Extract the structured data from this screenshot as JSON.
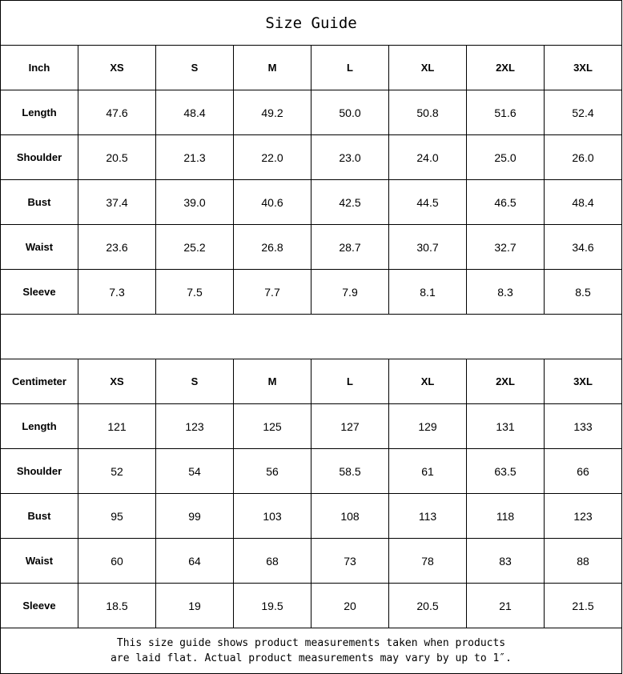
{
  "title": "Size Guide",
  "sizes": [
    "XS",
    "S",
    "M",
    "L",
    "XL",
    "2XL",
    "3XL"
  ],
  "tables": [
    {
      "unit": "Inch",
      "rows": [
        {
          "label": "Length",
          "values": [
            "47.6",
            "48.4",
            "49.2",
            "50.0",
            "50.8",
            "51.6",
            "52.4"
          ]
        },
        {
          "label": "Shoulder",
          "values": [
            "20.5",
            "21.3",
            "22.0",
            "23.0",
            "24.0",
            "25.0",
            "26.0"
          ]
        },
        {
          "label": "Bust",
          "values": [
            "37.4",
            "39.0",
            "40.6",
            "42.5",
            "44.5",
            "46.5",
            "48.4"
          ]
        },
        {
          "label": "Waist",
          "values": [
            "23.6",
            "25.2",
            "26.8",
            "28.7",
            "30.7",
            "32.7",
            "34.6"
          ]
        },
        {
          "label": "Sleeve",
          "values": [
            "7.3",
            "7.5",
            "7.7",
            "7.9",
            "8.1",
            "8.3",
            "8.5"
          ]
        }
      ]
    },
    {
      "unit": "Centimeter",
      "rows": [
        {
          "label": "Length",
          "values": [
            "121",
            "123",
            "125",
            "127",
            "129",
            "131",
            "133"
          ]
        },
        {
          "label": "Shoulder",
          "values": [
            "52",
            "54",
            "56",
            "58.5",
            "61",
            "63.5",
            "66"
          ]
        },
        {
          "label": "Bust",
          "values": [
            "95",
            "99",
            "103",
            "108",
            "113",
            "118",
            "123"
          ]
        },
        {
          "label": "Waist",
          "values": [
            "60",
            "64",
            "68",
            "73",
            "78",
            "83",
            "88"
          ]
        },
        {
          "label": "Sleeve",
          "values": [
            "18.5",
            "19",
            "19.5",
            "20",
            "20.5",
            "21",
            "21.5"
          ]
        }
      ]
    }
  ],
  "footer": {
    "line1": "This size guide shows product measurements taken when products",
    "line2": "are laid flat. Actual product measurements may vary by up to 1″."
  }
}
